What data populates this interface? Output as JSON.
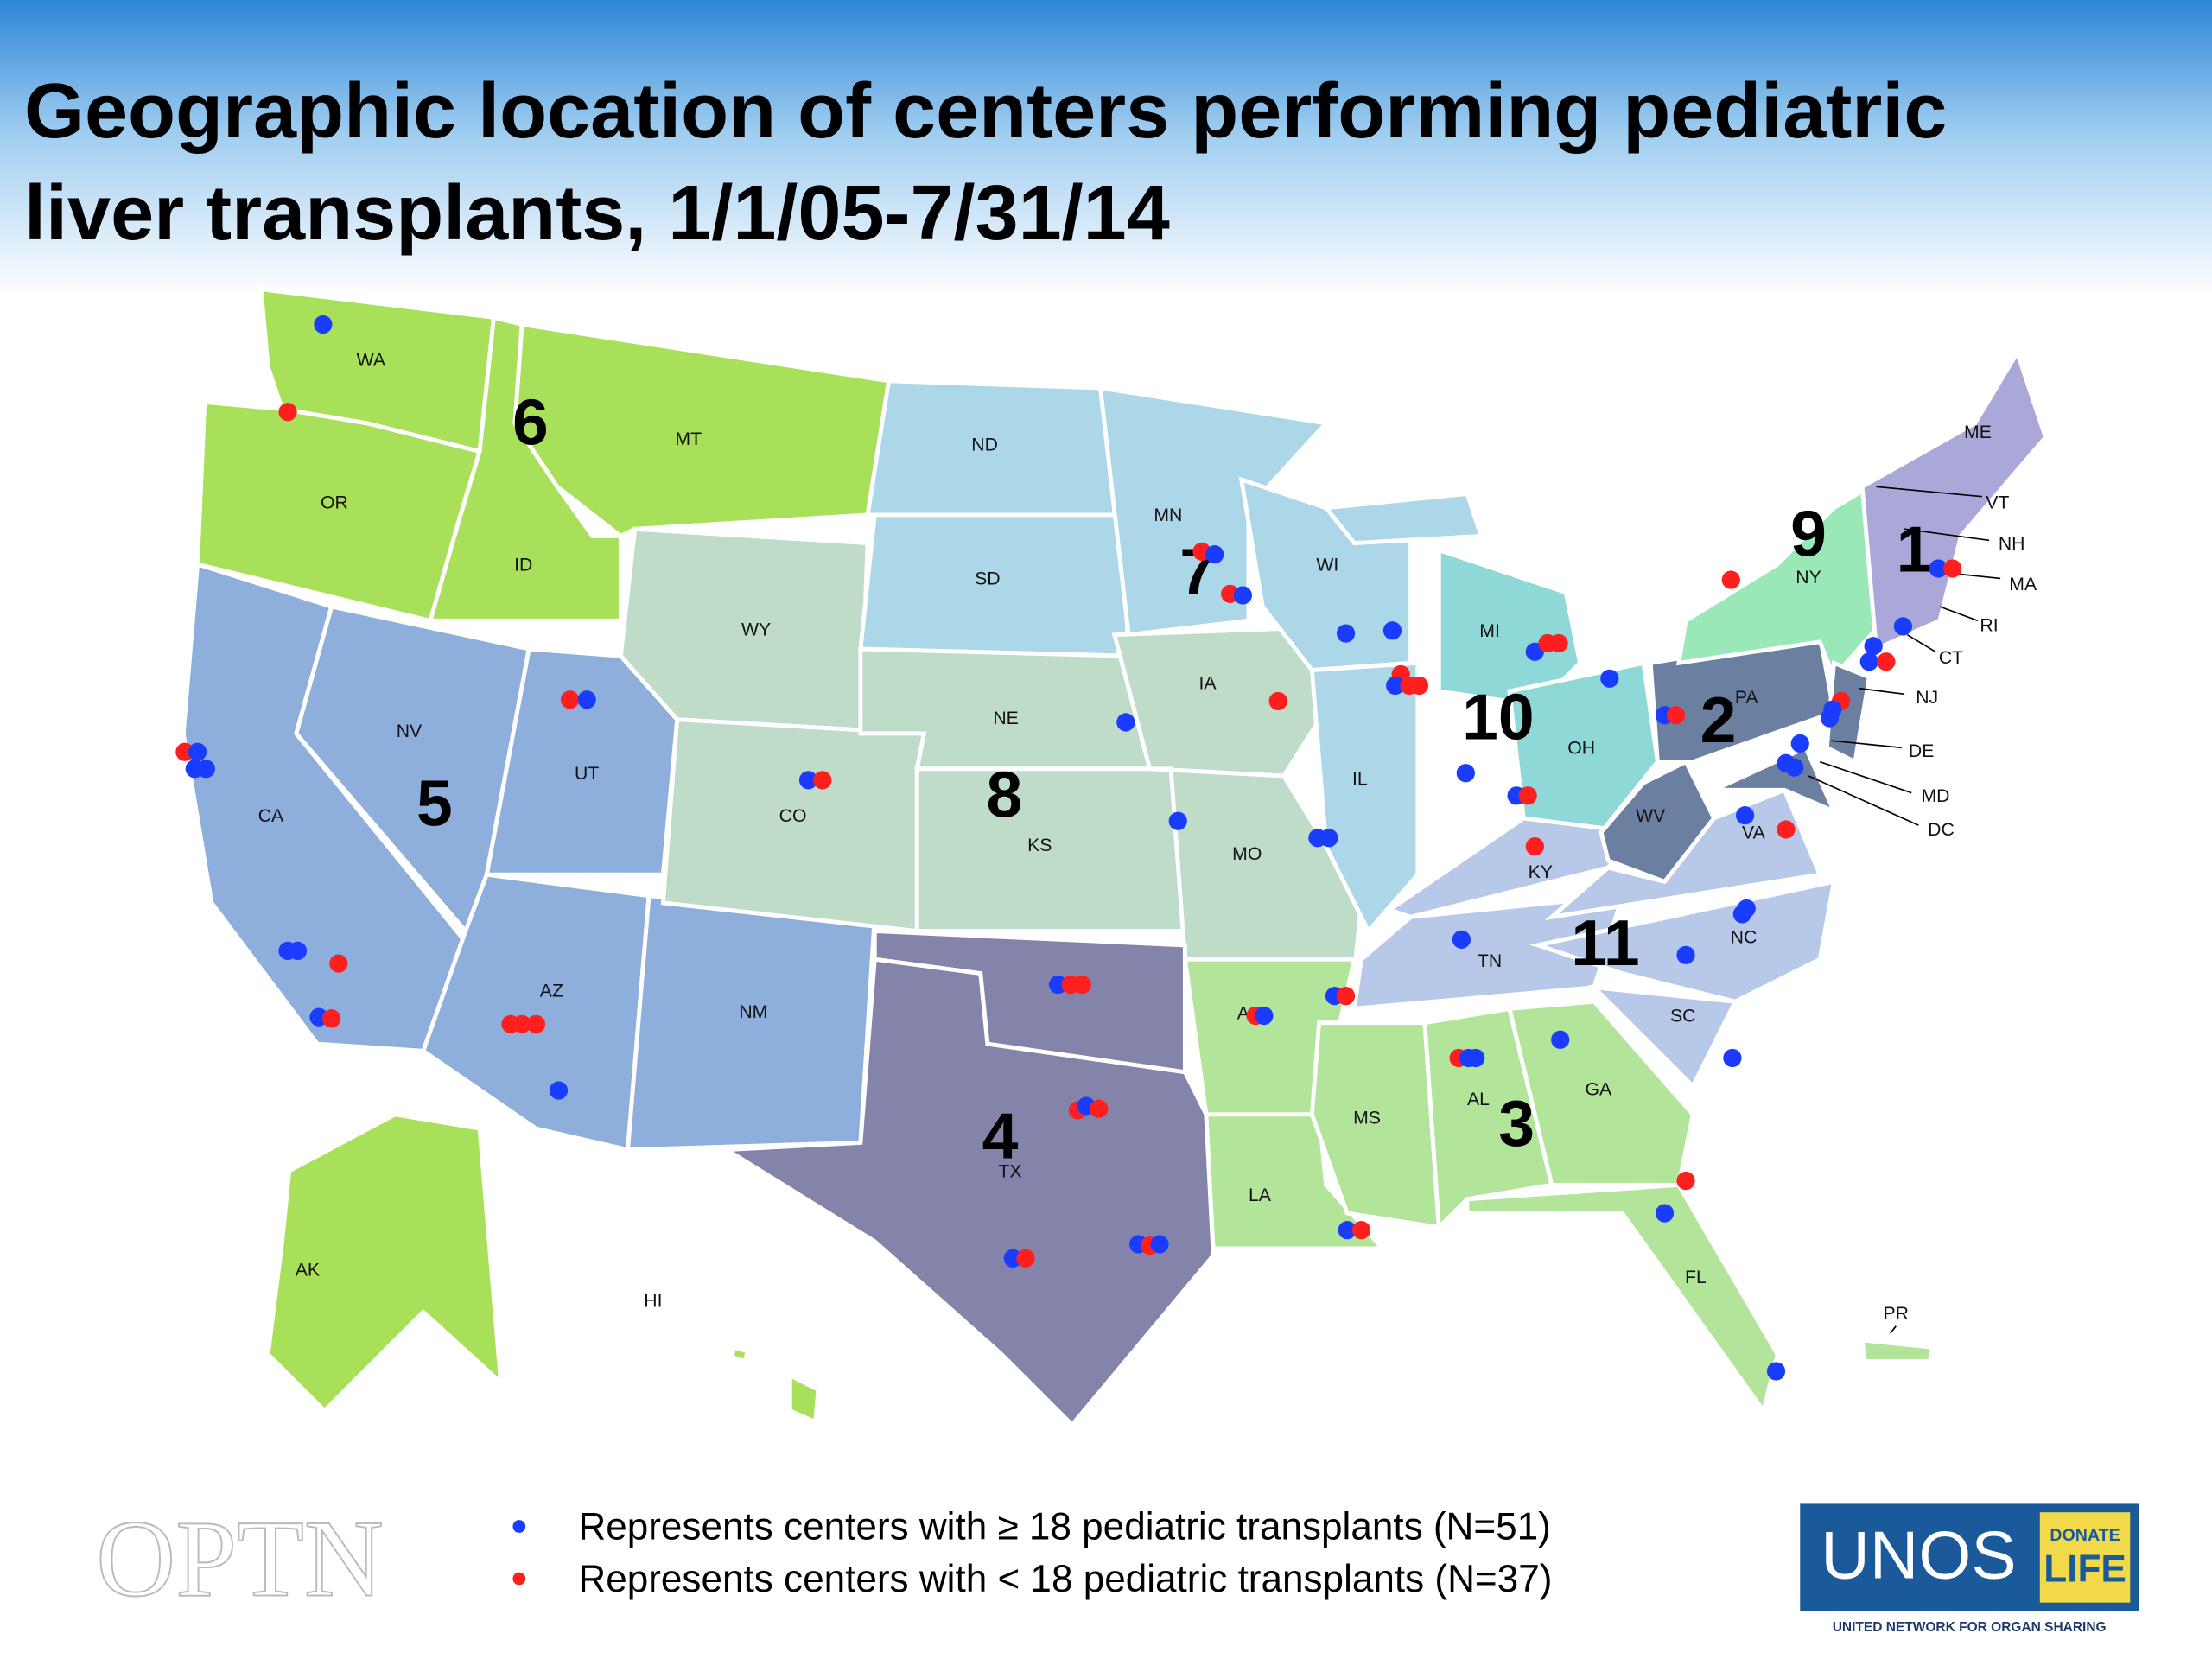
{
  "header": {
    "title_lines": [
      "Geographic location of centers performing pediatric",
      "liver transplants, 1/1/05-7/31/14"
    ]
  },
  "states": [
    "WA",
    "OR",
    "ID",
    "MT",
    "CA",
    "NV",
    "UT",
    "AZ",
    "NM",
    "WY",
    "CO",
    "ND",
    "SD",
    "NE",
    "KS",
    "MN",
    "IA",
    "MO",
    "WI",
    "IL",
    "MI",
    "OH",
    "KY",
    "TN",
    "WV",
    "VA",
    "NC",
    "SC",
    "PA",
    "NY",
    "NJ",
    "DE",
    "MD",
    "DC",
    "CT",
    "RI",
    "MA",
    "NH",
    "VT",
    "ME",
    "TX",
    "AR",
    "LA",
    "MS",
    "AL",
    "GA",
    "FL",
    "AK",
    "HI",
    "PR"
  ],
  "regions": [
    "6",
    "5",
    "8",
    "7",
    "4",
    "10",
    "2",
    "9",
    "1",
    "11",
    "3"
  ],
  "legend": [
    {
      "label": "Represents centers with ≥ 18 pediatric transplants (N=51)",
      "color": "#1a3cff"
    },
    {
      "label": "Represents centers with < 18 pediatric transplants (N=37)",
      "color": "#ff1f1f"
    }
  ],
  "logos": {
    "optn": "OPTN",
    "unos": "UNOS",
    "donate": "DONATE",
    "life": "LIFE",
    "network": "UNITED NETWORK FOR ORGAN SHARING"
  }
}
